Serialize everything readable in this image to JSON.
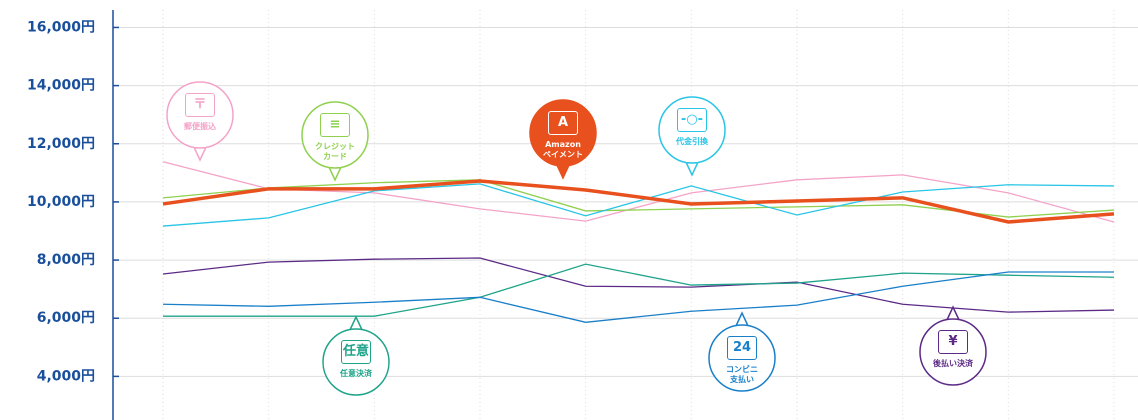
{
  "chart_data": {
    "type": "line",
    "categories": [
      null,
      null,
      null,
      null,
      null,
      null,
      null,
      null,
      null,
      null
    ],
    "ylim": [
      2500,
      16600
    ],
    "yticks": [
      {
        "value": 4000,
        "label": "4,000円"
      },
      {
        "value": 6000,
        "label": "6,000円"
      },
      {
        "value": 8000,
        "label": "8,000円"
      },
      {
        "value": 10000,
        "label": "10,000円"
      },
      {
        "value": 12000,
        "label": "12,000円"
      },
      {
        "value": 14000,
        "label": "14,000円"
      },
      {
        "value": 16000,
        "label": "16,000円"
      }
    ],
    "grid": true,
    "series": [
      {
        "name": "郵便振込",
        "icon": "〒",
        "color": "#f4a3c8",
        "values": [
          11380,
          10450,
          10310,
          9760,
          9340,
          10310,
          10760,
          10930,
          10310,
          9310
        ]
      },
      {
        "name": "クレジット\nカード",
        "icon": "≡",
        "color": "#8fd14f",
        "values": [
          10140,
          10480,
          10660,
          10760,
          9690,
          9760,
          9830,
          9900,
          9480,
          9720
        ]
      },
      {
        "name": "代金引換",
        "icon": "-○-",
        "color": "#29c5e6",
        "values": [
          9170,
          9450,
          10380,
          10620,
          9520,
          10550,
          9550,
          10340,
          10590,
          10550
        ]
      },
      {
        "name": "後払い決済",
        "icon": "¥",
        "color": "#5b2a86",
        "values": [
          7520,
          7930,
          8030,
          8070,
          7100,
          7070,
          7240,
          6480,
          6210,
          6280
        ]
      },
      {
        "name": "任意決済",
        "icon": "任意",
        "color": "#1fa38a",
        "values": [
          6070,
          6070,
          6070,
          6720,
          7860,
          7140,
          7210,
          7550,
          7480,
          7410
        ]
      },
      {
        "name": "コンビニ\n支払い",
        "icon": "24",
        "color": "#1a7fc9",
        "values": [
          6480,
          6410,
          6550,
          6720,
          5860,
          6240,
          6450,
          7100,
          7590,
          7590
        ]
      },
      {
        "name": "Amazon\nペイメント",
        "icon": "A",
        "color": "#e8501e",
        "values": [
          9930,
          10450,
          10450,
          10720,
          10410,
          9930,
          10030,
          10140,
          9310,
          9590
        ]
      }
    ]
  }
}
